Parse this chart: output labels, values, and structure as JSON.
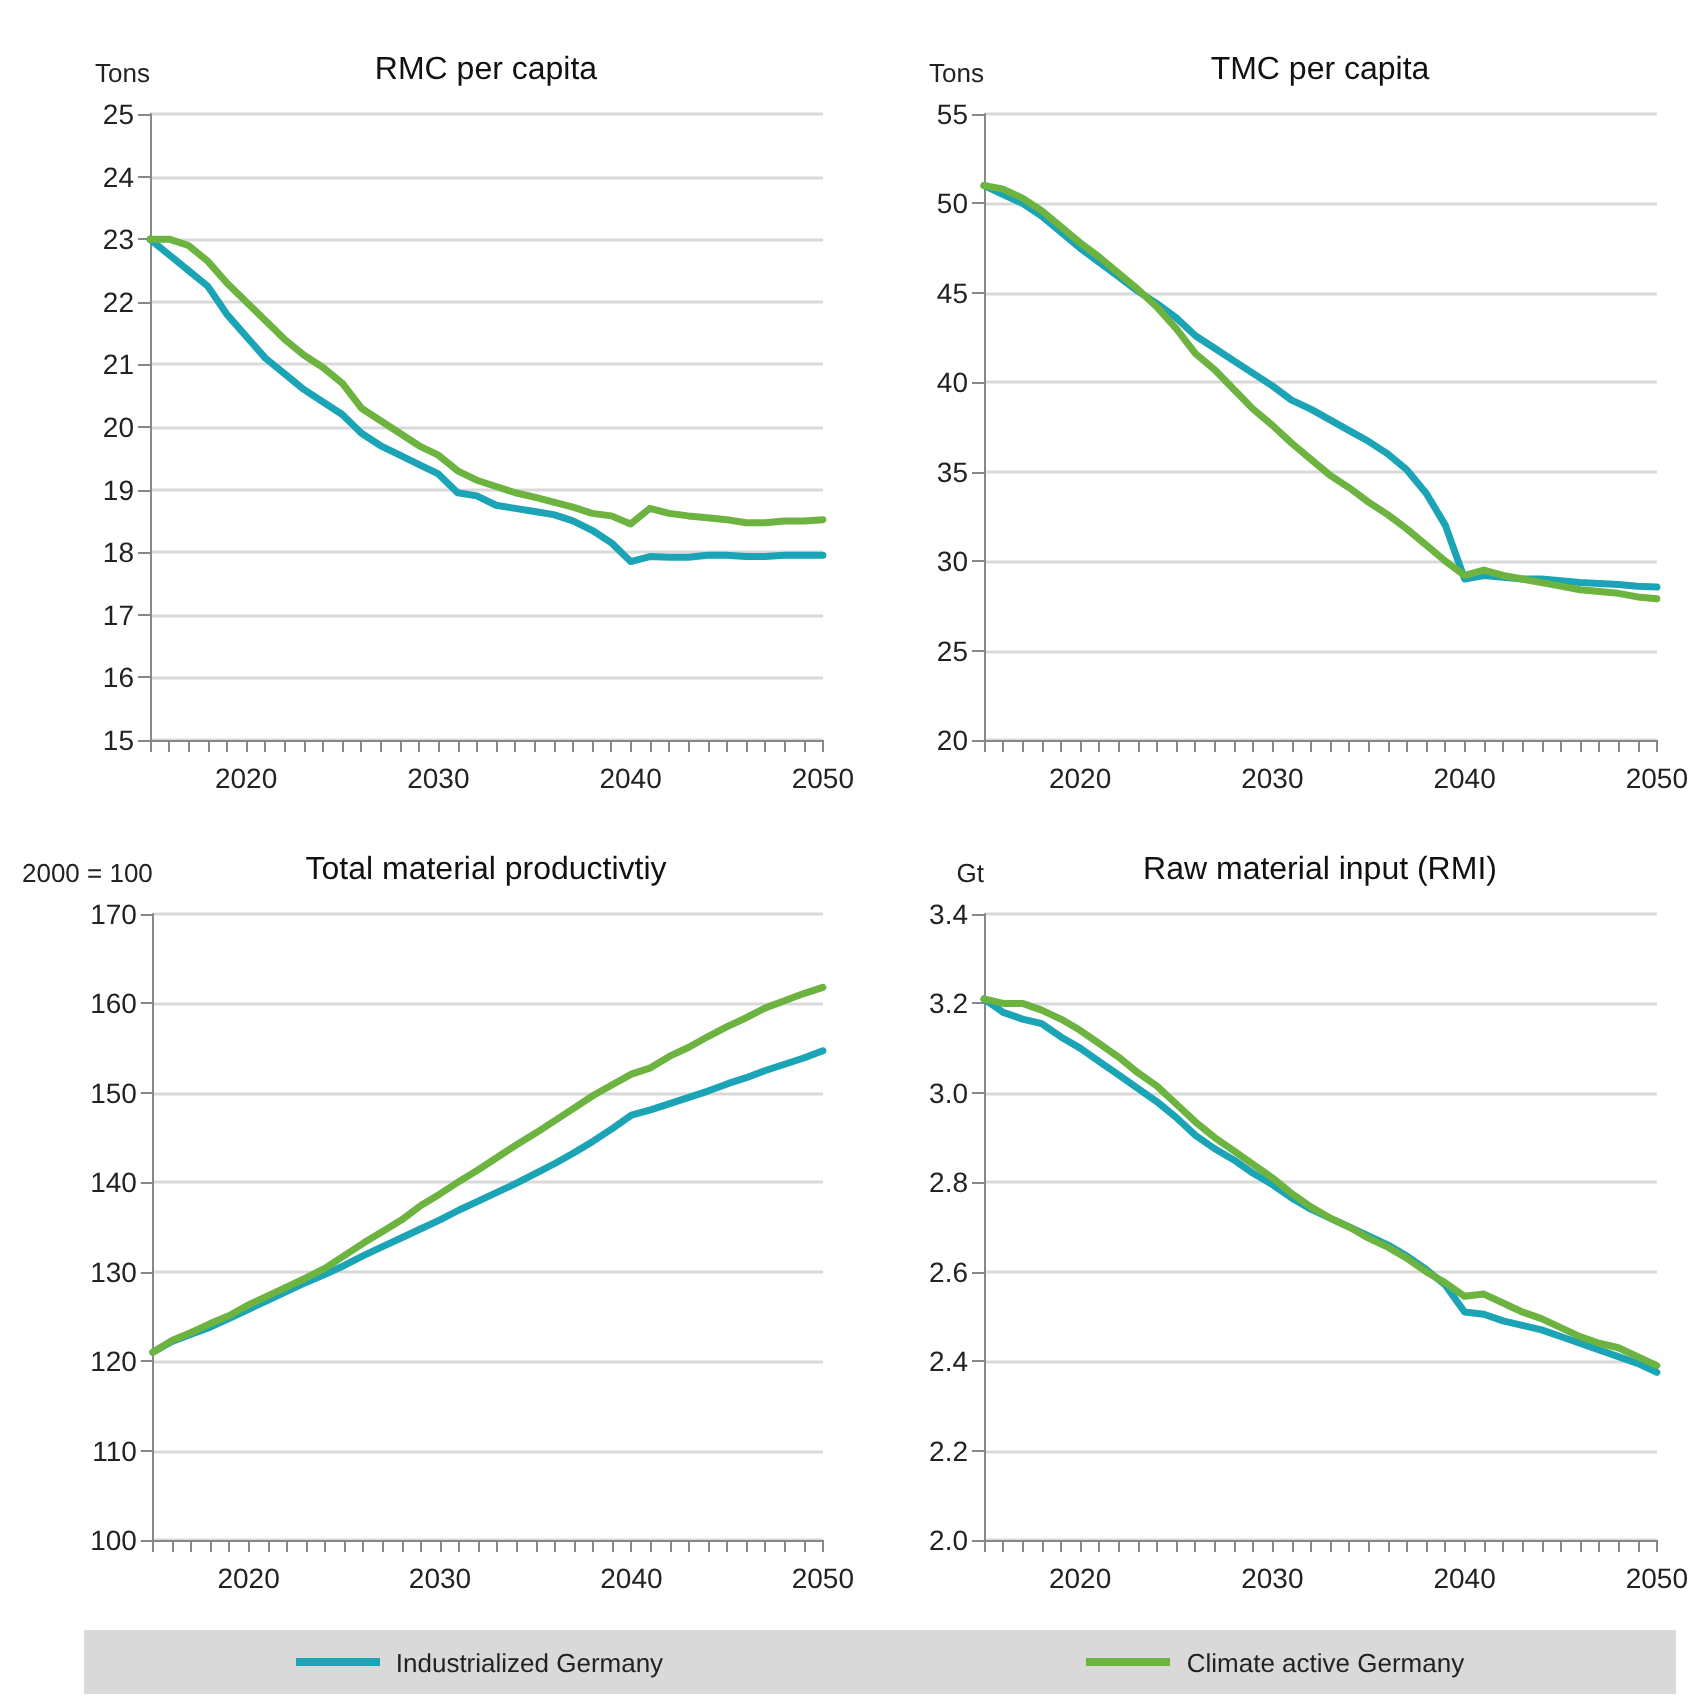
{
  "chart_data": [
    {
      "type": "line",
      "title": "RMC per capita",
      "ylabel": "Tons",
      "x": [
        2015,
        2016,
        2017,
        2018,
        2019,
        2020,
        2021,
        2022,
        2023,
        2024,
        2025,
        2026,
        2027,
        2028,
        2029,
        2030,
        2031,
        2032,
        2033,
        2034,
        2035,
        2036,
        2037,
        2038,
        2039,
        2040,
        2041,
        2042,
        2043,
        2044,
        2045,
        2046,
        2047,
        2048,
        2049,
        2050
      ],
      "series": [
        {
          "name": "Industrialized Germany",
          "color": "#1ba4b5",
          "values": [
            23.0,
            22.75,
            22.5,
            22.25,
            21.8,
            21.45,
            21.1,
            20.85,
            20.6,
            20.4,
            20.2,
            19.9,
            19.7,
            19.55,
            19.4,
            19.25,
            18.95,
            18.9,
            18.75,
            18.7,
            18.65,
            18.6,
            18.5,
            18.35,
            18.15,
            17.85,
            17.93,
            17.92,
            17.92,
            17.95,
            17.95,
            17.93,
            17.93,
            17.95,
            17.95,
            17.95
          ]
        },
        {
          "name": "Climate active Germany",
          "color": "#6cb33f",
          "values": [
            23.0,
            23.0,
            22.9,
            22.65,
            22.3,
            22.0,
            21.7,
            21.4,
            21.15,
            20.95,
            20.7,
            20.3,
            20.1,
            19.9,
            19.7,
            19.55,
            19.3,
            19.15,
            19.05,
            18.95,
            18.88,
            18.8,
            18.72,
            18.62,
            18.58,
            18.45,
            18.7,
            18.62,
            18.58,
            18.55,
            18.52,
            18.47,
            18.47,
            18.5,
            18.5,
            18.52
          ]
        }
      ],
      "xlim": [
        2015,
        2050
      ],
      "xticks": [
        {
          "value": 2015,
          "label": null
        },
        {
          "value": 2016,
          "label": null
        },
        {
          "value": 2017,
          "label": null
        },
        {
          "value": 2018,
          "label": null
        },
        {
          "value": 2019,
          "label": null
        },
        2020,
        {
          "value": 2021,
          "label": null
        },
        {
          "value": 2022,
          "label": null
        },
        {
          "value": 2023,
          "label": null
        },
        {
          "value": 2024,
          "label": null
        },
        {
          "value": 2025,
          "label": null
        },
        {
          "value": 2026,
          "label": null
        },
        {
          "value": 2027,
          "label": null
        },
        {
          "value": 2028,
          "label": null
        },
        {
          "value": 2029,
          "label": null
        },
        2030,
        {
          "value": 2031,
          "label": null
        },
        {
          "value": 2032,
          "label": null
        },
        {
          "value": 2033,
          "label": null
        },
        {
          "value": 2034,
          "label": null
        },
        {
          "value": 2035,
          "label": null
        },
        {
          "value": 2036,
          "label": null
        },
        {
          "value": 2037,
          "label": null
        },
        {
          "value": 2038,
          "label": null
        },
        {
          "value": 2039,
          "label": null
        },
        2040,
        {
          "value": 2041,
          "label": null
        },
        {
          "value": 2042,
          "label": null
        },
        {
          "value": 2043,
          "label": null
        },
        {
          "value": 2044,
          "label": null
        },
        {
          "value": 2045,
          "label": null
        },
        {
          "value": 2046,
          "label": null
        },
        {
          "value": 2047,
          "label": null
        },
        {
          "value": 2048,
          "label": null
        },
        {
          "value": 2049,
          "label": null
        },
        2050
      ],
      "ylim": [
        15,
        25
      ],
      "yticks": [
        15,
        16,
        17,
        18,
        19,
        20,
        21,
        22,
        23,
        24,
        25
      ],
      "grid": "y",
      "legend": "bottom",
      "marker": "none",
      "line_style": "solid"
    },
    {
      "type": "line",
      "title": "TMC per capita",
      "ylabel": "Tons",
      "x": [
        2015,
        2016,
        2017,
        2018,
        2019,
        2020,
        2021,
        2022,
        2023,
        2024,
        2025,
        2026,
        2027,
        2028,
        2029,
        2030,
        2031,
        2032,
        2033,
        2034,
        2035,
        2036,
        2037,
        2038,
        2039,
        2040,
        2041,
        2042,
        2043,
        2044,
        2045,
        2046,
        2047,
        2048,
        2049,
        2050
      ],
      "series": [
        {
          "name": "Industrialized Germany",
          "color": "#1ba4b5",
          "values": [
            51.0,
            50.5,
            50.0,
            49.3,
            48.4,
            47.5,
            46.7,
            45.9,
            45.1,
            44.4,
            43.6,
            42.6,
            41.9,
            41.2,
            40.5,
            39.8,
            39.0,
            38.5,
            37.9,
            37.3,
            36.7,
            36.0,
            35.1,
            33.8,
            32.0,
            29.0,
            29.2,
            29.1,
            29.0,
            29.0,
            28.9,
            28.8,
            28.75,
            28.7,
            28.6,
            28.55
          ]
        },
        {
          "name": "Climate active Germany",
          "color": "#6cb33f",
          "values": [
            51.0,
            50.8,
            50.3,
            49.6,
            48.7,
            47.8,
            47.0,
            46.1,
            45.2,
            44.2,
            43.0,
            41.6,
            40.7,
            39.6,
            38.5,
            37.6,
            36.6,
            35.7,
            34.8,
            34.1,
            33.3,
            32.6,
            31.8,
            30.9,
            30.0,
            29.2,
            29.5,
            29.2,
            29.0,
            28.8,
            28.6,
            28.4,
            28.3,
            28.2,
            28.0,
            27.9
          ]
        }
      ],
      "xlim": [
        2015,
        2050
      ],
      "xticks": [
        {
          "value": 2015,
          "label": null
        },
        {
          "value": 2016,
          "label": null
        },
        {
          "value": 2017,
          "label": null
        },
        {
          "value": 2018,
          "label": null
        },
        {
          "value": 2019,
          "label": null
        },
        2020,
        {
          "value": 2021,
          "label": null
        },
        {
          "value": 2022,
          "label": null
        },
        {
          "value": 2023,
          "label": null
        },
        {
          "value": 2024,
          "label": null
        },
        {
          "value": 2025,
          "label": null
        },
        {
          "value": 2026,
          "label": null
        },
        {
          "value": 2027,
          "label": null
        },
        {
          "value": 2028,
          "label": null
        },
        {
          "value": 2029,
          "label": null
        },
        2030,
        {
          "value": 2031,
          "label": null
        },
        {
          "value": 2032,
          "label": null
        },
        {
          "value": 2033,
          "label": null
        },
        {
          "value": 2034,
          "label": null
        },
        {
          "value": 2035,
          "label": null
        },
        {
          "value": 2036,
          "label": null
        },
        {
          "value": 2037,
          "label": null
        },
        {
          "value": 2038,
          "label": null
        },
        {
          "value": 2039,
          "label": null
        },
        2040,
        {
          "value": 2041,
          "label": null
        },
        {
          "value": 2042,
          "label": null
        },
        {
          "value": 2043,
          "label": null
        },
        {
          "value": 2044,
          "label": null
        },
        {
          "value": 2045,
          "label": null
        },
        {
          "value": 2046,
          "label": null
        },
        {
          "value": 2047,
          "label": null
        },
        {
          "value": 2048,
          "label": null
        },
        {
          "value": 2049,
          "label": null
        },
        2050
      ],
      "ylim": [
        20,
        55
      ],
      "yticks": [
        20,
        25,
        30,
        35,
        40,
        45,
        50,
        55
      ],
      "grid": "y",
      "legend": "bottom",
      "marker": "none",
      "line_style": "solid"
    },
    {
      "type": "line",
      "title": "Total material productivtiy",
      "ylabel": "2000 = 100",
      "x": [
        2015,
        2016,
        2017,
        2018,
        2019,
        2020,
        2021,
        2022,
        2023,
        2024,
        2025,
        2026,
        2027,
        2028,
        2029,
        2030,
        2031,
        2032,
        2033,
        2034,
        2035,
        2036,
        2037,
        2038,
        2039,
        2040,
        2041,
        2042,
        2043,
        2044,
        2045,
        2046,
        2047,
        2048,
        2049,
        2050
      ],
      "series": [
        {
          "name": "Industrialized Germany",
          "color": "#1ba4b5",
          "values": [
            121,
            122.2,
            123,
            123.8,
            124.8,
            125.8,
            126.8,
            127.8,
            128.8,
            129.7,
            130.7,
            131.8,
            132.8,
            133.8,
            134.8,
            135.8,
            136.9,
            137.9,
            138.9,
            139.9,
            141.0,
            142.1,
            143.3,
            144.6,
            146.0,
            147.5,
            148.1,
            148.8,
            149.5,
            150.2,
            151.0,
            151.7,
            152.5,
            153.2,
            153.9,
            154.7
          ]
        },
        {
          "name": "Climate active Germany",
          "color": "#6cb33f",
          "values": [
            121,
            122.3,
            123.2,
            124.2,
            125.1,
            126.3,
            127.3,
            128.3,
            129.3,
            130.4,
            131.8,
            133.2,
            134.5,
            135.8,
            137.4,
            138.7,
            140.1,
            141.4,
            142.8,
            144.2,
            145.5,
            146.9,
            148.3,
            149.7,
            150.9,
            152.1,
            152.8,
            154.1,
            155.1,
            156.3,
            157.4,
            158.4,
            159.5,
            160.3,
            161.1,
            161.8
          ]
        }
      ],
      "xlim": [
        2015,
        2050
      ],
      "xticks": [
        {
          "value": 2015,
          "label": null
        },
        {
          "value": 2016,
          "label": null
        },
        {
          "value": 2017,
          "label": null
        },
        {
          "value": 2018,
          "label": null
        },
        {
          "value": 2019,
          "label": null
        },
        2020,
        {
          "value": 2021,
          "label": null
        },
        {
          "value": 2022,
          "label": null
        },
        {
          "value": 2023,
          "label": null
        },
        {
          "value": 2024,
          "label": null
        },
        {
          "value": 2025,
          "label": null
        },
        {
          "value": 2026,
          "label": null
        },
        {
          "value": 2027,
          "label": null
        },
        {
          "value": 2028,
          "label": null
        },
        {
          "value": 2029,
          "label": null
        },
        2030,
        {
          "value": 2031,
          "label": null
        },
        {
          "value": 2032,
          "label": null
        },
        {
          "value": 2033,
          "label": null
        },
        {
          "value": 2034,
          "label": null
        },
        {
          "value": 2035,
          "label": null
        },
        {
          "value": 2036,
          "label": null
        },
        {
          "value": 2037,
          "label": null
        },
        {
          "value": 2038,
          "label": null
        },
        {
          "value": 2039,
          "label": null
        },
        2040,
        {
          "value": 2041,
          "label": null
        },
        {
          "value": 2042,
          "label": null
        },
        {
          "value": 2043,
          "label": null
        },
        {
          "value": 2044,
          "label": null
        },
        {
          "value": 2045,
          "label": null
        },
        {
          "value": 2046,
          "label": null
        },
        {
          "value": 2047,
          "label": null
        },
        {
          "value": 2048,
          "label": null
        },
        {
          "value": 2049,
          "label": null
        },
        2050
      ],
      "ylim": [
        100,
        170
      ],
      "yticks": [
        100,
        110,
        120,
        130,
        140,
        150,
        160,
        170
      ],
      "grid": "y",
      "legend": "bottom",
      "marker": "none",
      "line_style": "solid"
    },
    {
      "type": "line",
      "title": "Raw material input (RMI)",
      "ylabel": "Gt",
      "x": [
        2015,
        2016,
        2017,
        2018,
        2019,
        2020,
        2021,
        2022,
        2023,
        2024,
        2025,
        2026,
        2027,
        2028,
        2029,
        2030,
        2031,
        2032,
        2033,
        2034,
        2035,
        2036,
        2037,
        2038,
        2039,
        2040,
        2041,
        2042,
        2043,
        2044,
        2045,
        2046,
        2047,
        2048,
        2049,
        2050
      ],
      "series": [
        {
          "name": "Industrialized Germany",
          "color": "#1ba4b5",
          "values": [
            3.21,
            3.18,
            3.165,
            3.155,
            3.125,
            3.1,
            3.07,
            3.04,
            3.01,
            2.98,
            2.945,
            2.905,
            2.875,
            2.85,
            2.82,
            2.795,
            2.765,
            2.74,
            2.72,
            2.7,
            2.68,
            2.66,
            2.635,
            2.605,
            2.57,
            2.51,
            2.505,
            2.49,
            2.48,
            2.47,
            2.455,
            2.44,
            2.425,
            2.41,
            2.395,
            2.375
          ]
        },
        {
          "name": "Climate active Germany",
          "color": "#6cb33f",
          "values": [
            3.21,
            3.2,
            3.2,
            3.185,
            3.165,
            3.14,
            3.11,
            3.08,
            3.045,
            3.015,
            2.975,
            2.935,
            2.9,
            2.87,
            2.84,
            2.81,
            2.775,
            2.745,
            2.72,
            2.7,
            2.675,
            2.655,
            2.63,
            2.6,
            2.575,
            2.545,
            2.55,
            2.53,
            2.51,
            2.495,
            2.475,
            2.455,
            2.44,
            2.43,
            2.41,
            2.39
          ]
        }
      ],
      "xlim": [
        2015,
        2050
      ],
      "xticks": [
        {
          "value": 2015,
          "label": null
        },
        {
          "value": 2016,
          "label": null
        },
        {
          "value": 2017,
          "label": null
        },
        {
          "value": 2018,
          "label": null
        },
        {
          "value": 2019,
          "label": null
        },
        2020,
        {
          "value": 2021,
          "label": null
        },
        {
          "value": 2022,
          "label": null
        },
        {
          "value": 2023,
          "label": null
        },
        {
          "value": 2024,
          "label": null
        },
        {
          "value": 2025,
          "label": null
        },
        {
          "value": 2026,
          "label": null
        },
        {
          "value": 2027,
          "label": null
        },
        {
          "value": 2028,
          "label": null
        },
        {
          "value": 2029,
          "label": null
        },
        2030,
        {
          "value": 2031,
          "label": null
        },
        {
          "value": 2032,
          "label": null
        },
        {
          "value": 2033,
          "label": null
        },
        {
          "value": 2034,
          "label": null
        },
        {
          "value": 2035,
          "label": null
        },
        {
          "value": 2036,
          "label": null
        },
        {
          "value": 2037,
          "label": null
        },
        {
          "value": 2038,
          "label": null
        },
        {
          "value": 2039,
          "label": null
        },
        2040,
        {
          "value": 2041,
          "label": null
        },
        {
          "value": 2042,
          "label": null
        },
        {
          "value": 2043,
          "label": null
        },
        {
          "value": 2044,
          "label": null
        },
        {
          "value": 2045,
          "label": null
        },
        {
          "value": 2046,
          "label": null
        },
        {
          "value": 2047,
          "label": null
        },
        {
          "value": 2048,
          "label": null
        },
        {
          "value": 2049,
          "label": null
        },
        2050
      ],
      "ylim": [
        2.0,
        3.4
      ],
      "yticks": [
        {
          "value": 2.0,
          "label": "2.0"
        },
        {
          "value": 2.2,
          "label": "2.2"
        },
        {
          "value": 2.4,
          "label": "2.4"
        },
        {
          "value": 2.6,
          "label": "2.6"
        },
        {
          "value": 2.8,
          "label": "2.8"
        },
        {
          "value": 3.0,
          "label": "3.0"
        },
        {
          "value": 3.2,
          "label": "3.2"
        },
        {
          "value": 3.4,
          "label": "3.4"
        }
      ],
      "grid": "y",
      "legend": "bottom",
      "marker": "none",
      "line_style": "solid"
    }
  ]
}
